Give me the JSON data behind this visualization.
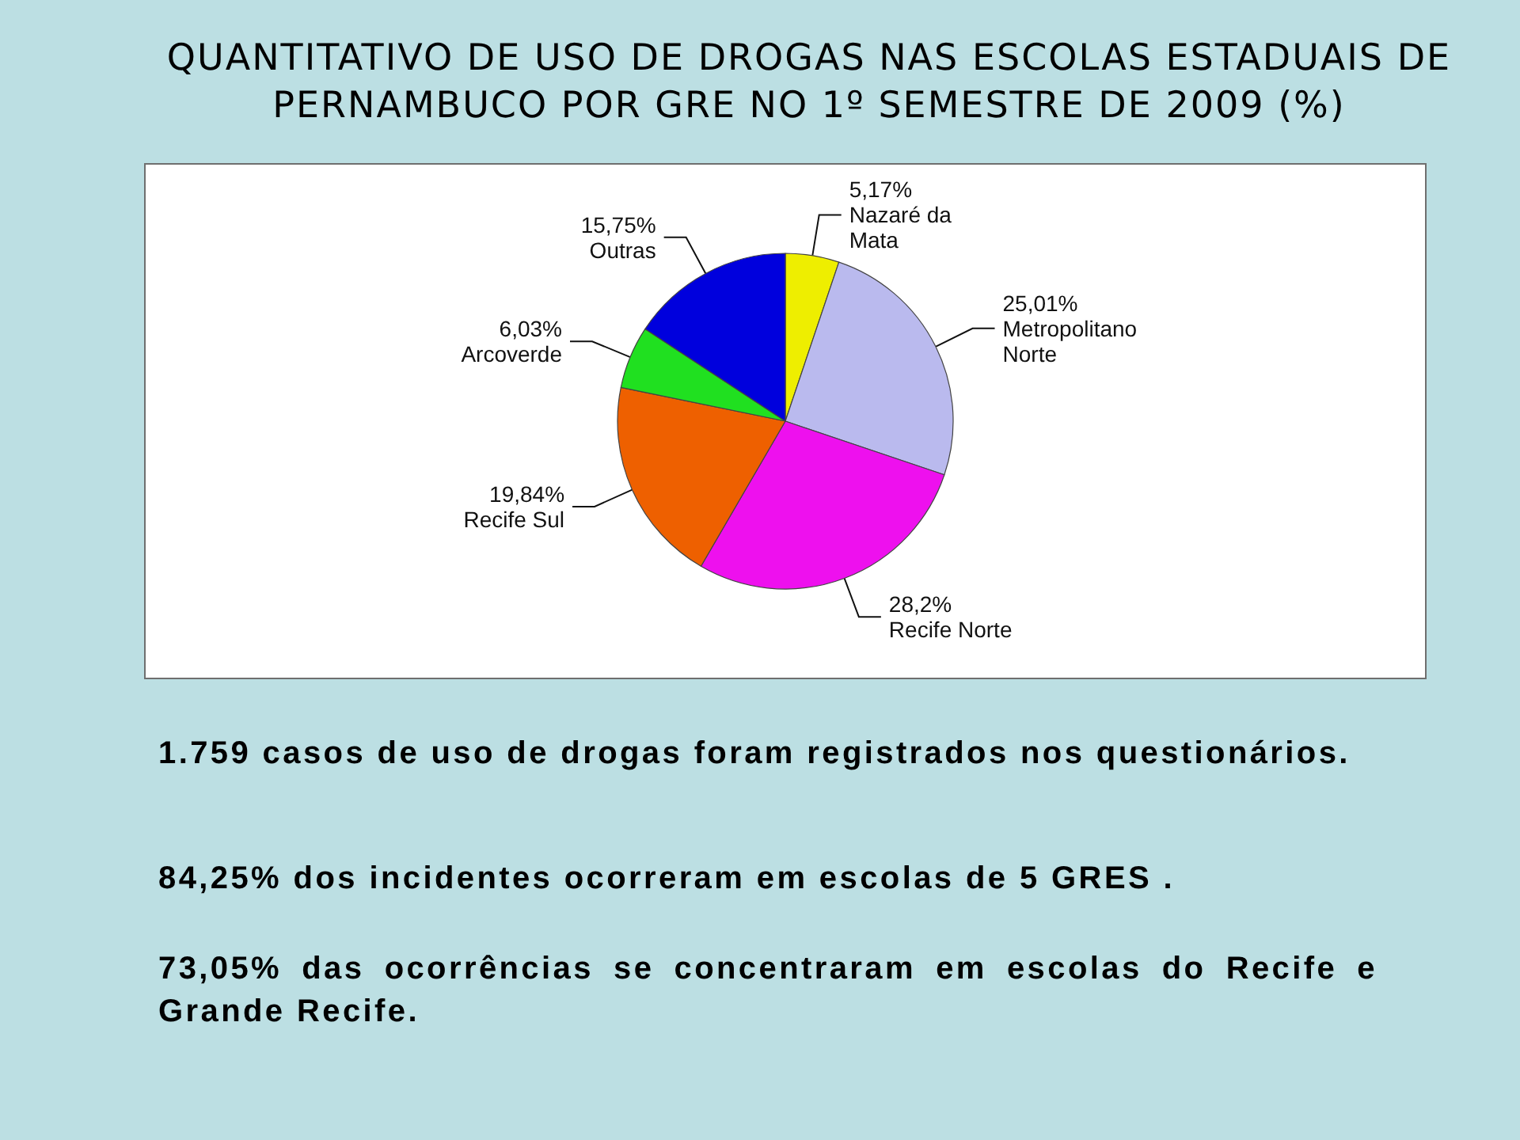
{
  "chart_data": {
    "type": "pie",
    "title": "QUANTITATIVO DE USO DE DROGAS NAS ESCOLAS ESTADUAIS DE PERNAMBUCO POR GRE NO 1º SEMESTRE DE 2009 (%)",
    "categories": [
      "Nazaré da Mata",
      "Metropolitano Norte",
      "Recife Norte",
      "Recife Sul",
      "Arcoverde",
      "Outras"
    ],
    "values": [
      5.17,
      25.01,
      28.2,
      19.84,
      6.03,
      15.75
    ],
    "colors": [
      "#eeee00",
      "#babaee",
      "#ee10ee",
      "#ee6000",
      "#20e020",
      "#0000dd"
    ],
    "value_labels": [
      "5,17%",
      "25,01%",
      "28,2%",
      "19,84%",
      "6,03%",
      "15,75%"
    ],
    "annotations": [
      "1.759 casos de uso de drogas foram registrados nos questionários.",
      "84,25% dos incidentes ocorreram em escolas de 5 GRES .",
      "73,05% das ocorrências se concentraram em escolas do Recife e Grande Recife."
    ]
  }
}
